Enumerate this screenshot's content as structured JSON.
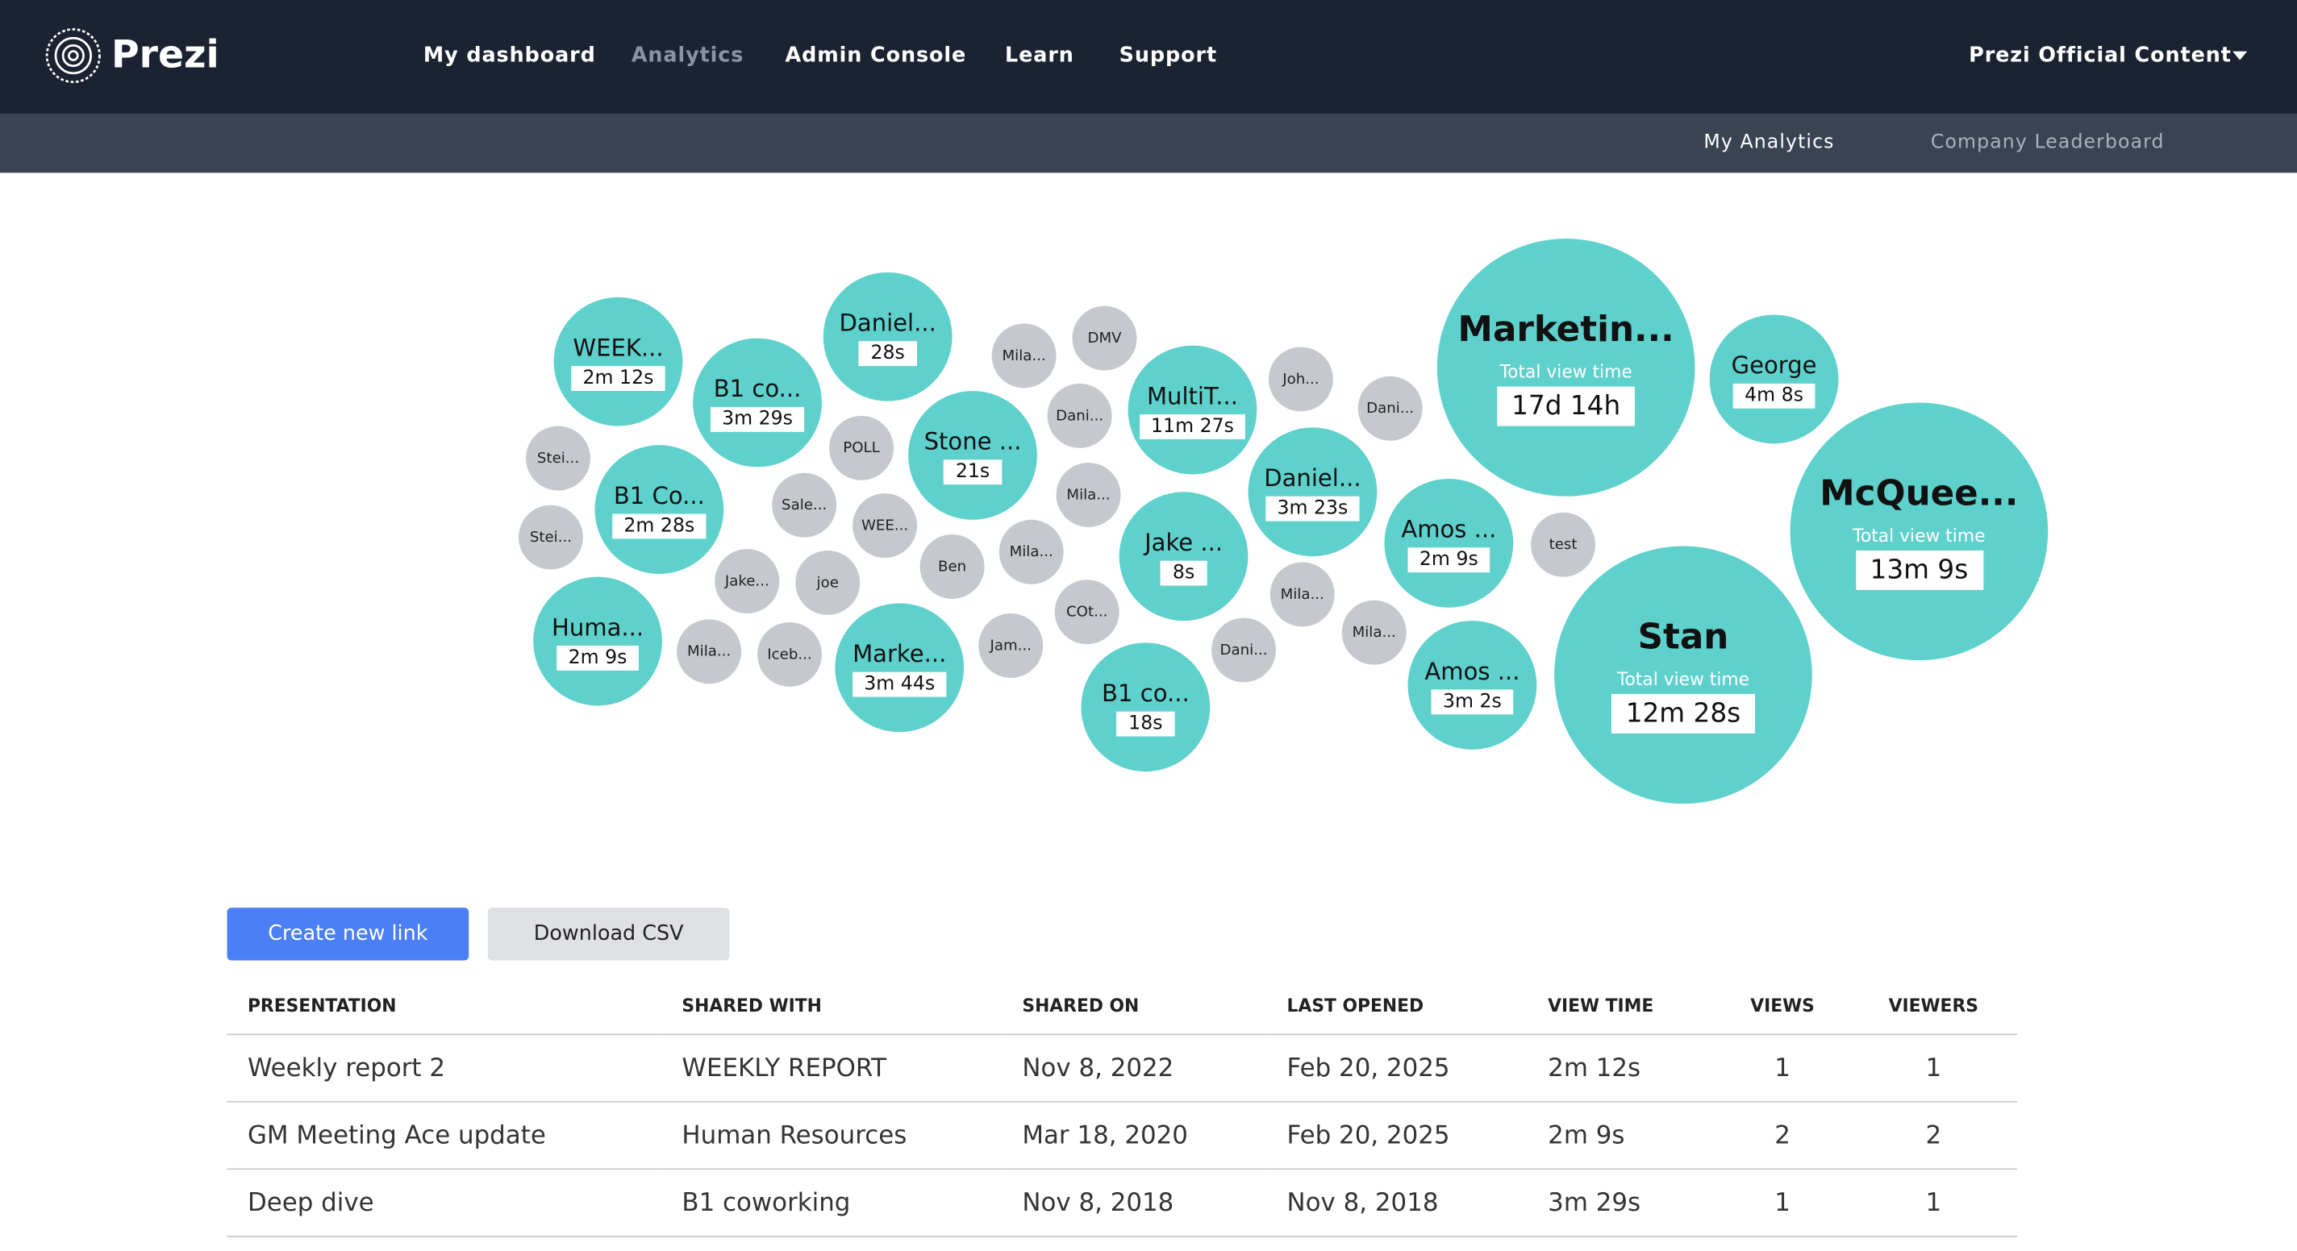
{
  "header": {
    "logo": "Prezi",
    "nav": [
      "My dashboard",
      "Analytics",
      "Admin Console",
      "Learn",
      "Support"
    ],
    "account": "Prezi Official Content"
  },
  "subnav": [
    "My Analytics",
    "Company Leaderboard"
  ],
  "bubbles": [
    {
      "label": "WEEK...",
      "time": "2m 12s"
    },
    {
      "label": "B1 co...",
      "time": "3m 29s"
    },
    {
      "label": "Daniel...",
      "time": "28s"
    },
    {
      "label": "Stone ...",
      "time": "21s"
    },
    {
      "label": "B1 Co...",
      "time": "2m 28s"
    },
    {
      "label": "Huma...",
      "time": "2m 9s"
    },
    {
      "label": "Marke...",
      "time": "3m 44s"
    },
    {
      "label": "MultiT...",
      "time": "11m 27s"
    },
    {
      "label": "Jake ...",
      "time": "8s"
    },
    {
      "label": "B1 co...",
      "time": "18s"
    },
    {
      "label": "Daniel...",
      "time": "3m 23s"
    },
    {
      "label": "Amos ...",
      "time": "2m 9s"
    },
    {
      "label": "Amos ...",
      "time": "3m 2s"
    },
    {
      "label": "George",
      "time": "4m 8s"
    },
    {
      "label": "Marketin...",
      "caption": "Total view time",
      "time": "17d 14h"
    },
    {
      "label": "McQuee...",
      "caption": "Total view time",
      "time": "13m 9s"
    },
    {
      "label": "Stan",
      "caption": "Total view time",
      "time": "12m 28s"
    }
  ],
  "small_bubbles": [
    "Mila...",
    "DMV",
    "Dani...",
    "Joh...",
    "Dani...",
    "Stei...",
    "POLL",
    "Mila...",
    "Stei...",
    "Sale...",
    "WEE...",
    "Mila...",
    "Ben",
    "test",
    "Jake...",
    "joe",
    "Mila...",
    "COt...",
    "Mila...",
    "Mila...",
    "Iceb...",
    "Jam...",
    "Dani..."
  ],
  "buttons": [
    "Create new link",
    "Download CSV"
  ],
  "table": {
    "headers": [
      "PRESENTATION",
      "SHARED WITH",
      "SHARED ON",
      "LAST OPENED",
      "VIEW TIME",
      "VIEWS",
      "VIEWERS"
    ],
    "rows": [
      [
        "Weekly report 2",
        "WEEKLY REPORT",
        "Nov 8, 2022",
        "Feb 20, 2025",
        "2m 12s",
        "1",
        "1"
      ],
      [
        "GM Meeting Ace update",
        "Human Resources",
        "Mar 18, 2020",
        "Feb 20, 2025",
        "2m 9s",
        "2",
        "2"
      ],
      [
        "Deep dive",
        "B1 coworking",
        "Nov 8, 2018",
        "Nov 8, 2018",
        "3m 29s",
        "1",
        "1"
      ]
    ]
  }
}
